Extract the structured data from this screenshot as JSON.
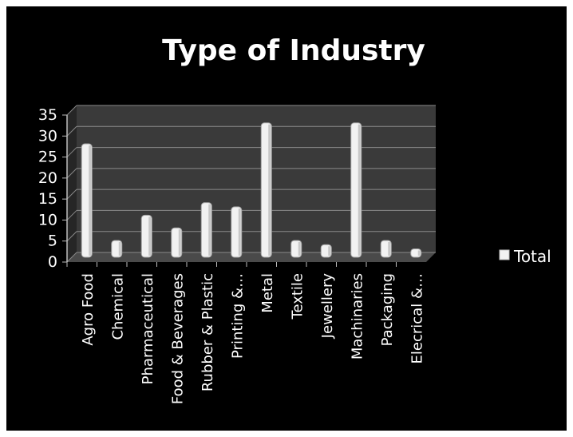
{
  "chart_data": {
    "type": "bar",
    "title": "Type of Industry",
    "categories": [
      "Agro Food",
      "Chemical",
      "Pharmaceutical",
      "Food & Beverages",
      "Rubber & Plastic",
      "Printing &…",
      "Metal",
      "Textile",
      "Jewellery",
      "Machinaries",
      "Packaging",
      "Elecrical &…"
    ],
    "series": [
      {
        "name": "Total",
        "values": [
          27,
          4,
          10,
          7,
          13,
          12,
          32,
          4,
          3,
          32,
          4,
          2
        ]
      }
    ],
    "ylim": [
      0,
      35
    ],
    "yticks": [
      0,
      5,
      10,
      15,
      20,
      25,
      30,
      35
    ],
    "grid": true,
    "legend_position": "right",
    "colors": {
      "background": "#000000",
      "wall": "#3a3a3a",
      "bar": "#f2f2f2",
      "text": "#ffffff",
      "grid": "#8a8a8a"
    }
  }
}
